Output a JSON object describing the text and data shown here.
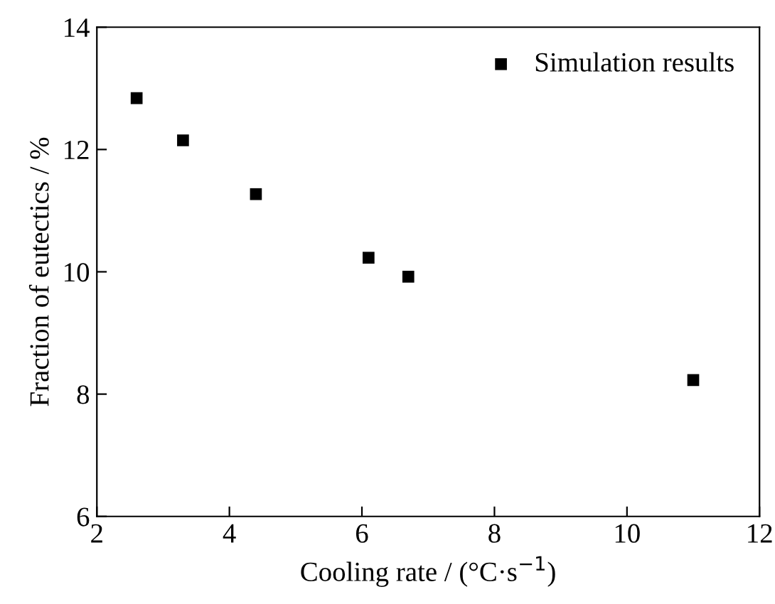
{
  "chart_data": {
    "type": "scatter",
    "xlabel": "Cooling rate / (°C·s$^{−1}$)",
    "ylabel": "Fraction of eutectics / %",
    "x": [
      2.6,
      3.3,
      4.4,
      6.1,
      6.7,
      11.0
    ],
    "series": [
      {
        "name": "Simulation results",
        "color": "#000000",
        "values": [
          12.84,
          12.15,
          11.27,
          10.23,
          9.92,
          8.23
        ]
      }
    ],
    "xlim": [
      2,
      12
    ],
    "xticks": [
      2,
      4,
      6,
      8,
      10,
      12
    ],
    "ylim": [
      6,
      14
    ],
    "yticks": [
      6,
      8,
      10,
      12,
      14
    ],
    "marker": "square",
    "grid": false,
    "legend": "top right"
  }
}
